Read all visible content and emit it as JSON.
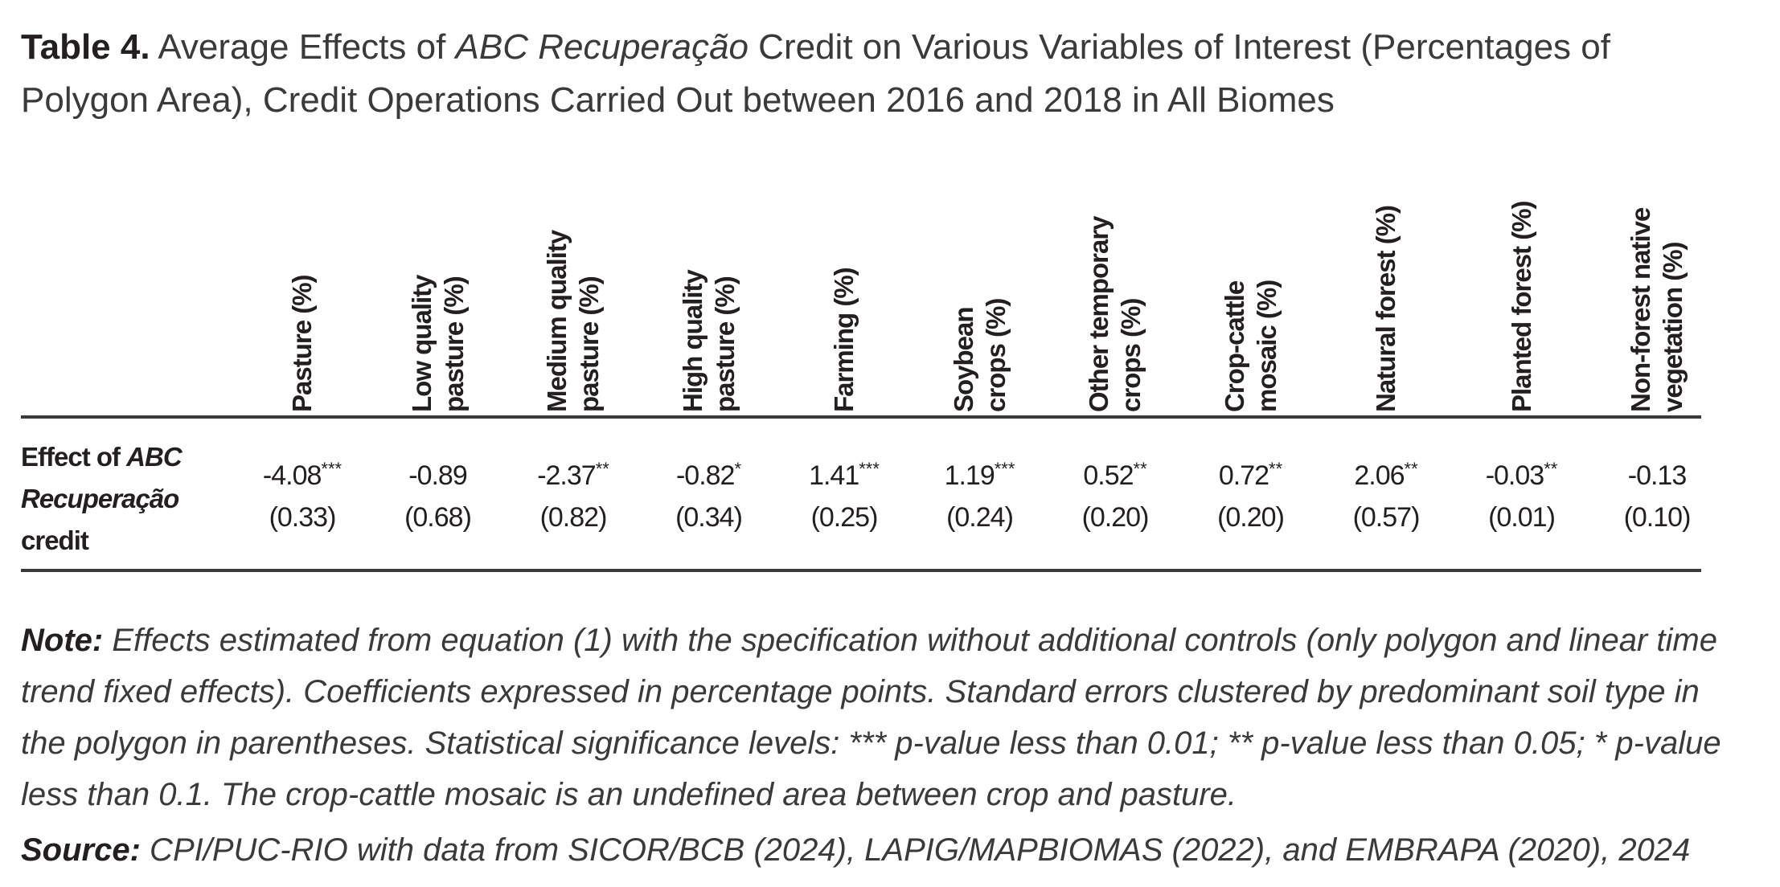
{
  "title": {
    "number": "Table 4.",
    "part1": " Average Effects of ",
    "italic": "ABC Recuperação",
    "part2": " Credit on Various Variables of Interest (Percentages of Polygon Area), Credit Operations Carried Out between 2016 and 2018 in All Biomes"
  },
  "columns": [
    {
      "line1": "Pasture (%)",
      "line2": ""
    },
    {
      "line1": "Low quality",
      "line2": "pasture (%)"
    },
    {
      "line1": "Medium quality",
      "line2": "pasture (%)"
    },
    {
      "line1": "High quality",
      "line2": "pasture (%)"
    },
    {
      "line1": "Farming (%)",
      "line2": ""
    },
    {
      "line1": "Soybean",
      "line2": "crops (%)"
    },
    {
      "line1": "Other temporary",
      "line2": "crops (%)"
    },
    {
      "line1": "Crop-cattle",
      "line2": "mosaic (%)"
    },
    {
      "line1": "Natural forest (%)",
      "line2": ""
    },
    {
      "line1": "Planted forest (%)",
      "line2": ""
    },
    {
      "line1": "Non-forest native",
      "line2": "vegetation (%)"
    }
  ],
  "row": {
    "label_part1": "Effect of ",
    "label_italic": "ABC Recuperação",
    "label_part2": " credit",
    "cells": [
      {
        "estimate": "-4.08",
        "stars": "***",
        "se": "(0.33)"
      },
      {
        "estimate": "-0.89",
        "stars": "",
        "se": "(0.68)"
      },
      {
        "estimate": "-2.37",
        "stars": "**",
        "se": "(0.82)"
      },
      {
        "estimate": "-0.82",
        "stars": "*",
        "se": "(0.34)"
      },
      {
        "estimate": "1.41",
        "stars": "***",
        "se": "(0.25)"
      },
      {
        "estimate": "1.19",
        "stars": "***",
        "se": "(0.24)"
      },
      {
        "estimate": "0.52",
        "stars": "**",
        "se": "(0.20)"
      },
      {
        "estimate": "0.72",
        "stars": "**",
        "se": "(0.20)"
      },
      {
        "estimate": "2.06",
        "stars": "**",
        "se": "(0.57)"
      },
      {
        "estimate": "-0.03",
        "stars": "**",
        "se": "(0.01)"
      },
      {
        "estimate": "-0.13",
        "stars": "",
        "se": "(0.10)"
      }
    ]
  },
  "note": {
    "label": "Note:",
    "text": " Effects estimated from equation (1) with the specification without additional controls (only polygon and linear time trend fixed effects). Coefficients expressed in percentage points. Standard errors clustered by predominant soil type in the polygon in parentheses. Statistical significance levels: *** p-value less than 0.01; ** p-value less than 0.05; * p-value less than 0.1. The crop-cattle mosaic is an undefined area between crop and pasture."
  },
  "source": {
    "label": "Source:",
    "text": " CPI/PUC-RIO with data from SICOR/BCB (2024), LAPIG/MAPBIOMAS (2022), and EMBRAPA (2020), 2024"
  }
}
